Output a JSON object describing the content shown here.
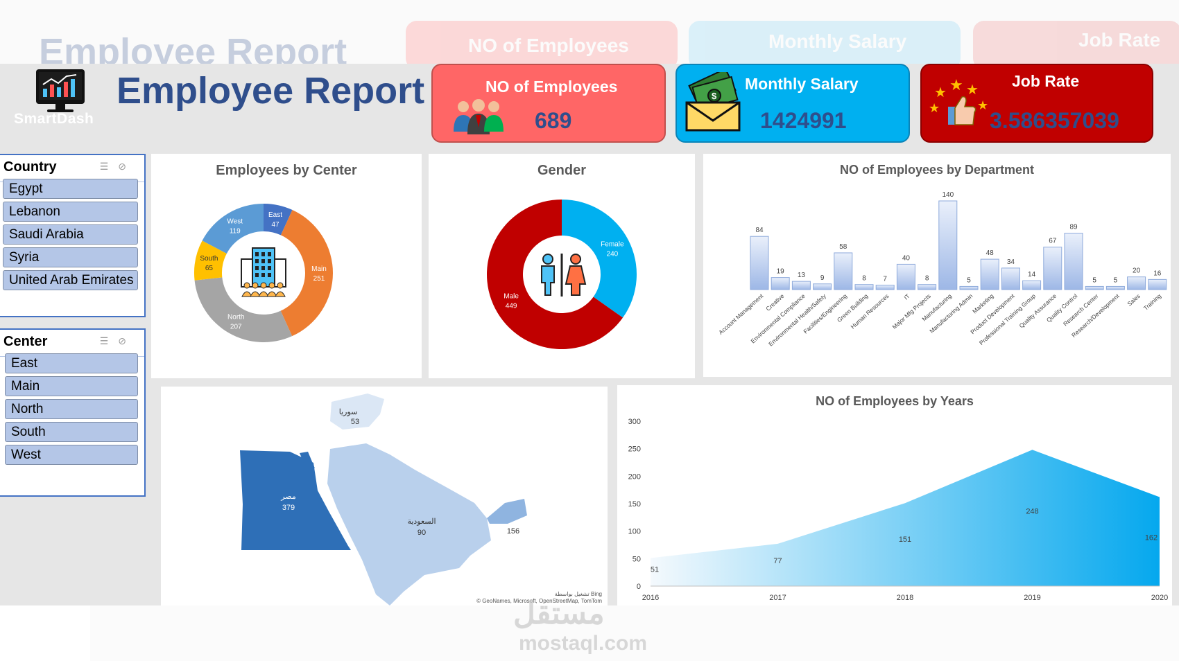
{
  "header": {
    "title": "Employee Report",
    "logo_text": "SmartDash",
    "reflection_title": "Employee Report"
  },
  "kpis": [
    {
      "label": "NO of Employees",
      "value": "689",
      "color": "#ff6666",
      "value_color": "#2f4e8c",
      "icon": "people-icon"
    },
    {
      "label": "Monthly Salary",
      "value": "1424991",
      "color": "#00b0f0",
      "value_color": "#2f4e8c",
      "icon": "money-envelope-icon"
    },
    {
      "label": "Job Rate",
      "value": "3.586357039",
      "color": "#c00000",
      "value_color": "#2f4e8c",
      "icon": "thumbs-up-stars-icon"
    }
  ],
  "slicers": {
    "country": {
      "title": "Country",
      "items": [
        "Egypt",
        "Lebanon",
        "Saudi Arabia",
        "Syria",
        "United Arab Emirates"
      ]
    },
    "center": {
      "title": "Center",
      "items": [
        "East",
        "Main",
        "North",
        "South",
        "West"
      ]
    }
  },
  "charts": {
    "center_title": "Employees by Center",
    "gender_title": "Gender",
    "dept_title": "NO of Employees by Department",
    "years_title": "NO of Employees by Years"
  },
  "map": {
    "regions": [
      {
        "name": "سوريا",
        "value": "53"
      },
      {
        "name": "مصر",
        "value": "379"
      },
      {
        "name": "السعودية",
        "value": "90"
      },
      {
        "name": "",
        "value": "156"
      }
    ],
    "credit1": "تشغيل بواسطة Bing",
    "credit2": "© GeoNames, Microsoft, OpenStreetMap, TomTom"
  },
  "watermark": {
    "brand_ar": "مستقل",
    "brand_url": "mostaql.com"
  },
  "chart_data": [
    {
      "type": "pie",
      "title": "Employees by Center",
      "categories": [
        "East",
        "Main",
        "North",
        "South",
        "West"
      ],
      "values": [
        47,
        251,
        207,
        65,
        119
      ],
      "colors": [
        "#4472c4",
        "#ed7d31",
        "#a5a5a5",
        "#ffc000",
        "#5b9bd5"
      ]
    },
    {
      "type": "pie",
      "title": "Gender",
      "categories": [
        "Female",
        "Male"
      ],
      "values": [
        240,
        449
      ],
      "colors": [
        "#00b0f0",
        "#c00000"
      ]
    },
    {
      "type": "bar",
      "title": "NO of Employees by Department",
      "categories": [
        "Account Management",
        "Creative",
        "Environmental Compliance",
        "Environmental Health/Safety",
        "Facilities/Engineering",
        "Green Building",
        "Human Resources",
        "IT",
        "Major Mfg Projects",
        "Manufacturing",
        "Manufacturing Admin",
        "Marketing",
        "Product Development",
        "Professional Training Group",
        "Quality Assurance",
        "Quality Control",
        "Research Center",
        "Research/Development",
        "Sales",
        "Training"
      ],
      "values": [
        84,
        19,
        13,
        9,
        58,
        8,
        7,
        40,
        8,
        140,
        5,
        48,
        34,
        14,
        67,
        89,
        5,
        5,
        20,
        16
      ],
      "ylim": [
        0,
        140
      ]
    },
    {
      "type": "area",
      "title": "NO of Employees by Years",
      "x": [
        "2016",
        "2017",
        "2018",
        "2019",
        "2020"
      ],
      "values": [
        51,
        77,
        151,
        248,
        162
      ],
      "yticks": [
        0,
        50,
        100,
        150,
        200,
        250,
        300
      ],
      "ylim": [
        0,
        300
      ]
    }
  ]
}
